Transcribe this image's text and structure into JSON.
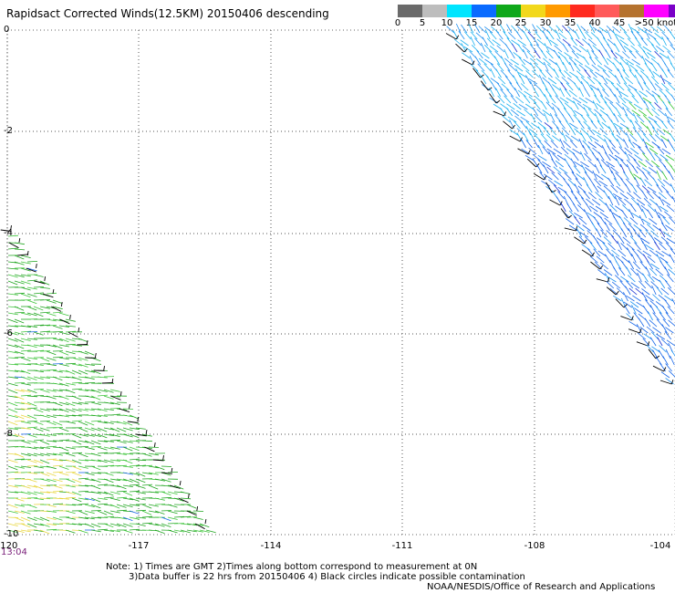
{
  "title": "Rapidsact Corrected Winds(12.5KM) 20150406 descending",
  "legend": {
    "colors": [
      "#6a6a6a",
      "#bdbdbd",
      "#00e5ff",
      "#0a6bff",
      "#0fa81a",
      "#f2d81b",
      "#ff9a00",
      "#ff2a1f",
      "#ff5a5a",
      "#b5722e",
      "#ff00ff",
      "#7a00c7"
    ],
    "labels": [
      "0",
      "5",
      "10",
      "15",
      "20",
      "25",
      "30",
      "35",
      "40",
      "45",
      ">50 knots"
    ]
  },
  "axes": {
    "x_ticks": [
      "-120",
      "-117",
      "-114",
      "-111",
      "-108",
      "-104"
    ],
    "y_ticks": [
      "0",
      "-2",
      "-4",
      "-6",
      "-8",
      "-10"
    ]
  },
  "timestamp": "13:04",
  "notes": {
    "line1": "Note: 1) Times are GMT 2)Times along bottom correspond to measurement at 0N",
    "line2": "3)Data buffer is 22 hrs from 20150406 4) Black circles indicate possible contamination",
    "line3": "NOAA/NESDIS/Office of Research and Applications"
  }
}
